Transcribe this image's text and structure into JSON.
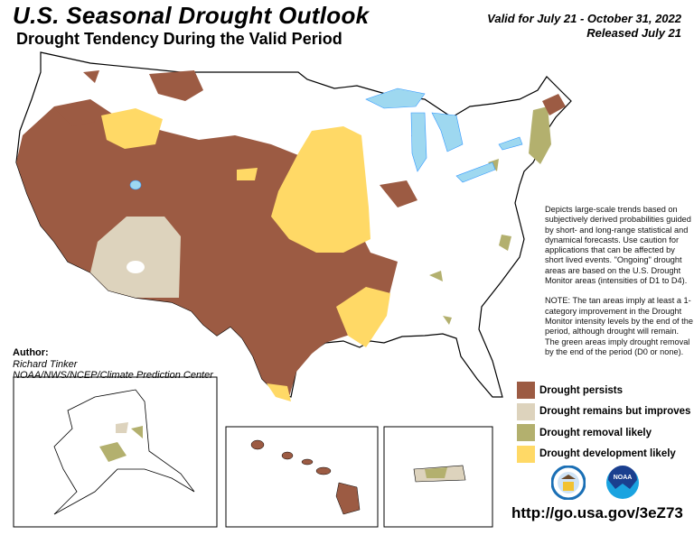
{
  "header": {
    "title": "U.S. Seasonal Drought Outlook",
    "subtitle": "Drought Tendency During the Valid Period",
    "valid": "Valid for July 21 - October 31, 2022",
    "released": "Released July 21"
  },
  "description": {
    "para1": "Depicts large-scale trends based on subjectively derived probabilities guided by short- and long-range statistical and dynamical forecasts. Use caution for applications that can be affected by short lived events. \"Ongoing\" drought areas are based on the U.S. Drought Monitor areas (intensities of D1 to D4).",
    "para2": "NOTE: The tan areas imply at least a 1-category improvement in the Drought Monitor intensity levels by the end of the period, although drought will remain. The green areas imply drought removal by the end of the period (D0 or none)."
  },
  "author": {
    "label": "Author:",
    "name": "Richard Tinker",
    "org": "NOAA/NWS/NCEP/Climate Prediction Center"
  },
  "legend": [
    {
      "label": "Drought persists",
      "color": "#9c5b43"
    },
    {
      "label": "Drought remains but improves",
      "color": "#ddd3bd"
    },
    {
      "label": "Drought removal likely",
      "color": "#b3b06e"
    },
    {
      "label": "Drought development likely",
      "color": "#ffd966"
    }
  ],
  "logos": [
    "Department of Commerce seal",
    "NOAA"
  ],
  "logo_text": {
    "noaa": "NOAA"
  },
  "url": "http://go.usa.gov/3eZ73",
  "colors": {
    "water": "#9ed8f0",
    "river": "#3399ff"
  }
}
